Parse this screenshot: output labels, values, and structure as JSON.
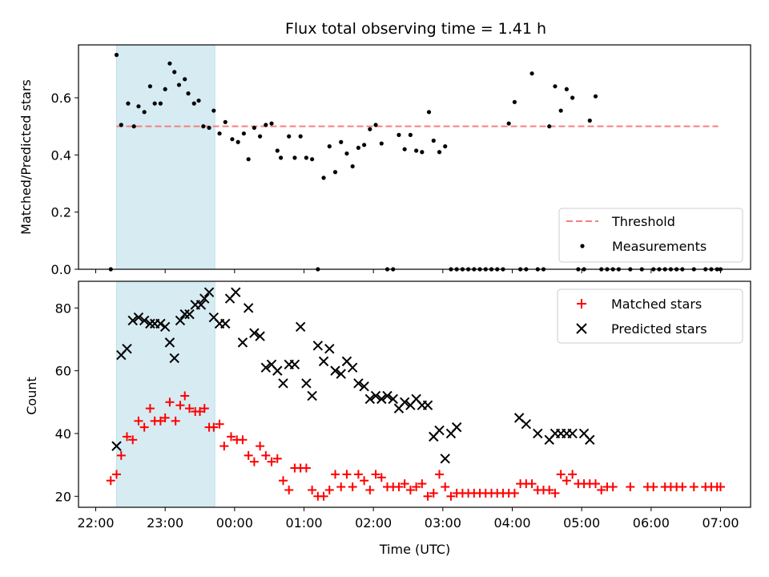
{
  "chart_data": [
    {
      "type": "scatter",
      "title": "Flux total observing time = 1.41 h",
      "ylabel": "Matched/Predicted stars",
      "xlabel": "",
      "ylim": [
        0,
        0.785
      ],
      "x_ticks": [
        "22:00",
        "23:00",
        "00:00",
        "01:00",
        "02:00",
        "03:00",
        "04:00",
        "05:00",
        "06:00",
        "07:00"
      ],
      "y_ticks": [
        "0.0",
        "0.2",
        "0.4",
        "0.6"
      ],
      "shaded_region": {
        "x_start": "22:18",
        "x_end": "23:43"
      },
      "threshold": {
        "name": "Threshold",
        "value": 0.5,
        "x_start": "22:18",
        "x_end": "06:58",
        "color": "#f77f7f"
      },
      "legend_position": "lower right",
      "series": [
        {
          "name": "Measurements",
          "marker": "dot",
          "color": "#000000",
          "x": [
            "22:13",
            "22:18",
            "22:22",
            "22:28",
            "22:33",
            "22:37",
            "22:42",
            "22:47",
            "22:51",
            "22:56",
            "23:00",
            "23:04",
            "23:08",
            "23:12",
            "23:17",
            "23:20",
            "23:25",
            "23:29",
            "23:33",
            "23:38",
            "23:42",
            "23:47",
            "23:52",
            "23:58",
            "00:03",
            "00:08",
            "00:12",
            "00:17",
            "00:22",
            "00:27",
            "00:32",
            "00:37",
            "00:40",
            "00:47",
            "00:52",
            "00:57",
            "01:02",
            "01:07",
            "01:12",
            "01:17",
            "01:22",
            "01:27",
            "01:32",
            "01:37",
            "01:42",
            "01:47",
            "01:52",
            "01:57",
            "02:02",
            "02:07",
            "02:12",
            "02:17",
            "02:22",
            "02:27",
            "02:32",
            "02:37",
            "02:42",
            "02:48",
            "02:52",
            "02:57",
            "03:02",
            "03:07",
            "03:12",
            "03:17",
            "03:22",
            "03:27",
            "03:32",
            "03:37",
            "03:42",
            "03:47",
            "03:52",
            "03:57",
            "04:02",
            "04:07",
            "04:12",
            "04:17",
            "04:22",
            "04:27",
            "04:32",
            "04:37",
            "04:42",
            "04:47",
            "04:52",
            "04:57",
            "05:02",
            "05:07",
            "05:12",
            "05:17",
            "05:22",
            "05:27",
            "05:32",
            "05:42",
            "05:52",
            "06:02",
            "06:07",
            "06:12",
            "06:17",
            "06:22",
            "06:27",
            "06:37",
            "06:47",
            "06:52",
            "06:57",
            "07:00"
          ],
          "y": [
            0.0,
            0.75,
            0.505,
            0.58,
            0.5,
            0.57,
            0.55,
            0.64,
            0.58,
            0.58,
            0.63,
            0.72,
            0.69,
            0.645,
            0.665,
            0.615,
            0.58,
            0.59,
            0.5,
            0.495,
            0.555,
            0.475,
            0.515,
            0.455,
            0.445,
            0.475,
            0.385,
            0.495,
            0.465,
            0.505,
            0.51,
            0.415,
            0.39,
            0.465,
            0.39,
            0.465,
            0.39,
            0.385,
            0.0,
            0.32,
            0.43,
            0.34,
            0.445,
            0.405,
            0.36,
            0.425,
            0.435,
            0.49,
            0.505,
            0.44,
            0.0,
            0.0,
            0.47,
            0.42,
            0.47,
            0.415,
            0.41,
            0.55,
            0.45,
            0.41,
            0.43,
            0.0,
            0.0,
            0.0,
            0.0,
            0.0,
            0.0,
            0.0,
            0.0,
            0.0,
            0.0,
            0.51,
            0.585,
            0.0,
            0.0,
            0.685,
            0.0,
            0.0,
            0.5,
            0.64,
            0.555,
            0.63,
            0.6,
            0.0,
            0.0,
            0.52,
            0.605,
            0.0,
            0.0,
            0.0,
            0.0,
            0.0,
            0.0,
            0.0,
            0.0,
            0.0,
            0.0,
            0.0,
            0.0,
            0.0,
            0.0,
            0.0,
            0.0,
            0.0
          ]
        }
      ]
    },
    {
      "type": "scatter",
      "title": "",
      "xlabel": "Time (UTC)",
      "ylabel": "Count",
      "ylim": [
        16.5,
        88.5
      ],
      "x_ticks": [
        "22:00",
        "23:00",
        "00:00",
        "01:00",
        "02:00",
        "03:00",
        "04:00",
        "05:00",
        "06:00",
        "07:00"
      ],
      "y_ticks": [
        "20",
        "40",
        "60",
        "80"
      ],
      "shaded_region": {
        "x_start": "22:18",
        "x_end": "23:43"
      },
      "legend_position": "upper right",
      "series": [
        {
          "name": "Matched stars",
          "marker": "plus",
          "color": "#ff0000",
          "x": [
            "22:13",
            "22:18",
            "22:22",
            "22:27",
            "22:32",
            "22:37",
            "22:42",
            "22:47",
            "22:51",
            "22:56",
            "23:00",
            "23:04",
            "23:09",
            "23:13",
            "23:17",
            "23:21",
            "23:26",
            "23:30",
            "23:34",
            "23:38",
            "23:42",
            "23:47",
            "23:51",
            "23:57",
            "00:02",
            "00:07",
            "00:12",
            "00:17",
            "00:22",
            "00:27",
            "00:32",
            "00:37",
            "00:42",
            "00:47",
            "00:52",
            "00:57",
            "01:02",
            "01:07",
            "01:12",
            "01:17",
            "01:22",
            "01:27",
            "01:32",
            "01:37",
            "01:42",
            "01:47",
            "01:52",
            "01:57",
            "02:02",
            "02:07",
            "02:12",
            "02:17",
            "02:22",
            "02:27",
            "02:32",
            "02:37",
            "02:42",
            "02:47",
            "02:52",
            "02:57",
            "03:02",
            "03:07",
            "03:12",
            "03:17",
            "03:22",
            "03:27",
            "03:32",
            "03:37",
            "03:42",
            "03:47",
            "03:52",
            "03:57",
            "04:02",
            "04:07",
            "04:12",
            "04:17",
            "04:22",
            "04:27",
            "04:32",
            "04:37",
            "04:42",
            "04:47",
            "04:52",
            "04:57",
            "05:02",
            "05:07",
            "05:12",
            "05:17",
            "05:22",
            "05:27",
            "05:42",
            "05:57",
            "06:02",
            "06:12",
            "06:17",
            "06:22",
            "06:27",
            "06:37",
            "06:47",
            "06:52",
            "06:57",
            "07:00"
          ],
          "y": [
            25,
            27,
            33,
            39,
            38,
            44,
            42,
            48,
            44,
            44,
            45,
            50,
            44,
            49,
            52,
            48,
            47,
            47,
            48,
            42,
            42,
            43,
            36,
            39,
            38,
            38,
            33,
            31,
            36,
            33,
            31,
            32,
            25,
            22,
            29,
            29,
            29,
            22,
            20,
            20,
            22,
            27,
            23,
            27,
            23,
            27,
            25,
            22,
            27,
            26,
            23,
            23,
            23,
            24,
            22,
            23,
            24,
            20,
            21,
            27,
            23,
            20,
            21,
            21,
            21,
            21,
            21,
            21,
            21,
            21,
            21,
            21,
            21,
            24,
            24,
            24,
            22,
            22,
            22,
            21,
            27,
            25,
            27,
            24,
            24,
            24,
            24,
            22,
            23,
            23,
            23,
            23,
            23,
            23,
            23,
            23,
            23,
            23,
            23,
            23,
            23,
            23
          ]
        },
        {
          "name": "Predicted stars",
          "marker": "x",
          "color": "#000000",
          "x": [
            "22:18",
            "22:22",
            "22:27",
            "22:32",
            "22:37",
            "22:42",
            "22:47",
            "22:51",
            "22:56",
            "23:00",
            "23:04",
            "23:08",
            "23:13",
            "23:17",
            "23:21",
            "23:26",
            "23:31",
            "23:34",
            "23:38",
            "23:42",
            "23:47",
            "23:52",
            "23:56",
            "24:01",
            "24:07",
            "24:12",
            "24:17",
            "24:22",
            "24:27",
            "24:32",
            "24:37",
            "24:42",
            "24:47",
            "24:52",
            "24:57",
            "25:02",
            "25:07",
            "25:12",
            "25:17",
            "25:22",
            "25:27",
            "25:32",
            "25:37",
            "25:42",
            "25:47",
            "25:52",
            "25:57",
            "26:02",
            "26:07",
            "26:12",
            "26:17",
            "26:22",
            "26:27",
            "26:32",
            "26:37",
            "26:42",
            "26:47",
            "26:52",
            "26:57",
            "27:02",
            "27:07",
            "27:12",
            "28:06",
            "28:12",
            "28:22",
            "28:32",
            "28:37",
            "28:42",
            "28:47",
            "28:52",
            "29:02",
            "29:07"
          ],
          "y": [
            36,
            65,
            67,
            76,
            77,
            76,
            75,
            75,
            75,
            74,
            69,
            64,
            76,
            78,
            78,
            81,
            81,
            83,
            85,
            77,
            75,
            75,
            83,
            85,
            69,
            80,
            72,
            71,
            61,
            62,
            60,
            56,
            62,
            62,
            74,
            56,
            52,
            68,
            63,
            67,
            60,
            59,
            63,
            61,
            56,
            55,
            51,
            52,
            51,
            52,
            51,
            48,
            50,
            49,
            51,
            49,
            49,
            39,
            41,
            32,
            40,
            42,
            45,
            43,
            40,
            38,
            40,
            40,
            40,
            40,
            40,
            38
          ]
        }
      ]
    }
  ]
}
